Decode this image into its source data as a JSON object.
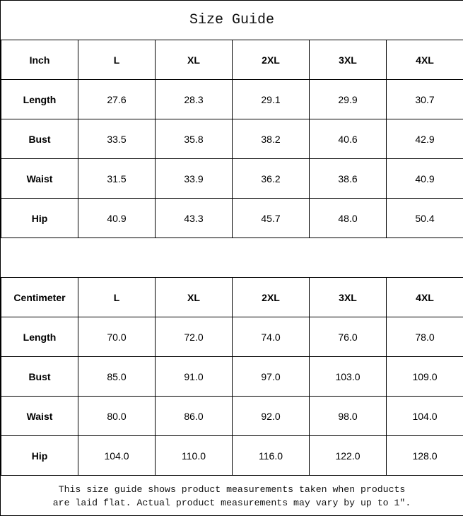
{
  "title": "Size Guide",
  "tables": [
    {
      "unit": "Inch",
      "sizes": [
        "L",
        "XL",
        "2XL",
        "3XL",
        "4XL"
      ],
      "rows": [
        {
          "label": "Length",
          "values": [
            "27.6",
            "28.3",
            "29.1",
            "29.9",
            "30.7"
          ]
        },
        {
          "label": "Bust",
          "values": [
            "33.5",
            "35.8",
            "38.2",
            "40.6",
            "42.9"
          ]
        },
        {
          "label": "Waist",
          "values": [
            "31.5",
            "33.9",
            "36.2",
            "38.6",
            "40.9"
          ]
        },
        {
          "label": "Hip",
          "values": [
            "40.9",
            "43.3",
            "45.7",
            "48.0",
            "50.4"
          ]
        }
      ]
    },
    {
      "unit": "Centimeter",
      "sizes": [
        "L",
        "XL",
        "2XL",
        "3XL",
        "4XL"
      ],
      "rows": [
        {
          "label": "Length",
          "values": [
            "70.0",
            "72.0",
            "74.0",
            "76.0",
            "78.0"
          ]
        },
        {
          "label": "Bust",
          "values": [
            "85.0",
            "91.0",
            "97.0",
            "103.0",
            "109.0"
          ]
        },
        {
          "label": "Waist",
          "values": [
            "80.0",
            "86.0",
            "92.0",
            "98.0",
            "104.0"
          ]
        },
        {
          "label": "Hip",
          "values": [
            "104.0",
            "110.0",
            "116.0",
            "122.0",
            "128.0"
          ]
        }
      ]
    }
  ],
  "footer": {
    "line1": "This size guide shows product measurements taken when products",
    "line2": "are laid flat. Actual product measurements may vary by up to 1″."
  }
}
